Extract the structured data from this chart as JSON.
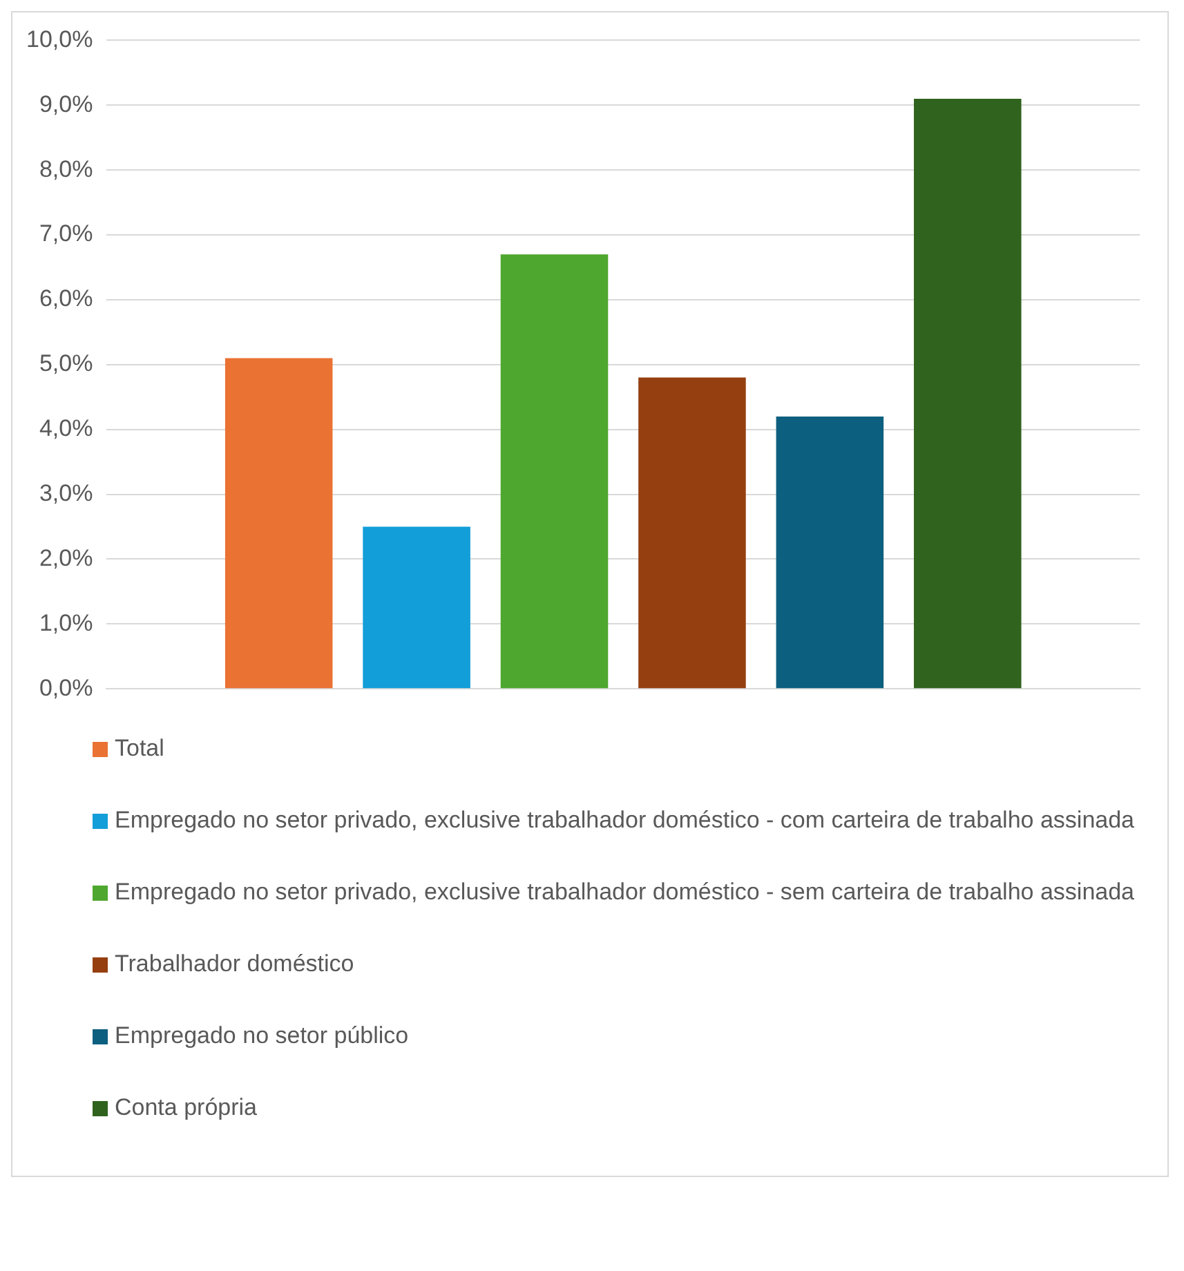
{
  "chart_data": {
    "type": "bar",
    "categories": [
      null
    ],
    "series": [
      {
        "name": "Total",
        "color": "#ea7233",
        "values": [
          5.1
        ]
      },
      {
        "name": "Empregado no setor privado, exclusive trabalhador doméstico - com carteira de trabalho assinada",
        "color": "#129ed8",
        "values": [
          2.5
        ]
      },
      {
        "name": "Empregado no setor privado, exclusive trabalhador doméstico - sem carteira de trabalho assinada",
        "color": "#4ea72e",
        "values": [
          6.7
        ]
      },
      {
        "name": "Trabalhador doméstico",
        "color": "#953f10",
        "values": [
          4.8
        ]
      },
      {
        "name": "Empregado no setor público",
        "color": "#0d5f7f",
        "values": [
          4.2
        ]
      },
      {
        "name": "Conta própria",
        "color": "#2f631e",
        "values": [
          9.1
        ]
      }
    ],
    "ylim": [
      0,
      10
    ],
    "yticks": [
      {
        "value": 0,
        "label": "0,0%"
      },
      {
        "value": 1,
        "label": "1,0%"
      },
      {
        "value": 2,
        "label": "2,0%"
      },
      {
        "value": 3,
        "label": "3,0%"
      },
      {
        "value": 4,
        "label": "4,0%"
      },
      {
        "value": 5,
        "label": "5,0%"
      },
      {
        "value": 6,
        "label": "6,0%"
      },
      {
        "value": 7,
        "label": "7,0%"
      },
      {
        "value": 8,
        "label": "8,0%"
      },
      {
        "value": 9,
        "label": "9,0%"
      },
      {
        "value": 10,
        "label": "10,0%"
      }
    ],
    "grid": "y",
    "legend": "bottom"
  }
}
